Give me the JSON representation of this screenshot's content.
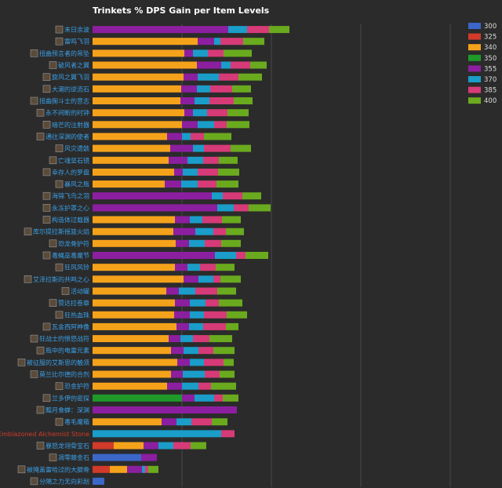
{
  "chart_data": {
    "type": "bar",
    "stacked": true,
    "orientation": "horizontal",
    "title": "Trinkets % DPS Gain per Item Levels",
    "legend_position": "right",
    "grid": true,
    "categories": [
      "末日余波",
      "雷鸣飞羽",
      "扭曲预言者的吊坠",
      "破风者之翼",
      "旋风之翼飞羽",
      "大潮的逆流石",
      "扭曲掬斗士的意志",
      "永不间断的时钟",
      "暗芒的注射器",
      "通往深渊的使者",
      "风灾遗骸",
      "亡魂坚石镜",
      "幸存人的罗盘",
      "暴风之瓶",
      "海锦飞鸟之羽",
      "永冻护罩之心",
      "构造体过载器",
      "库尔提拉斯摇篮火焰",
      "恐龙骨护符",
      "毒蝇巫毒魔节",
      "狂风风铃",
      "艾泽拉斯的共鸣之心",
      "活动罐",
      "赞达拉卷章",
      "狂热血珠",
      "瓦金西阿神像",
      "狂战士的愤怒战符",
      "瓶中的电雷元素",
      "被征服的艾斯恩的触须",
      "莫兰比尔德的合剂",
      "恐金护符",
      "兰多伊的密探",
      "黯月食蝉：深渊",
      "毒毛魔箱",
      "Emblazoned Alchemist Stone",
      "暴怒龙翎骨宝石",
      "凋零棘金石",
      "被掩盖雷哈过的大腿骨",
      "分隔之力无向彩刮"
    ],
    "label_colors": {
      "default": "#3aa0e8",
      "Emblazoned Alchemist Stone": "#d23a2a"
    },
    "series": [
      {
        "name": "300",
        "color": "#3a67c8",
        "values": [
          0,
          0,
          0,
          0,
          0,
          0,
          0,
          0,
          0,
          0,
          0,
          0,
          0,
          0,
          0,
          0,
          0,
          0,
          0,
          0,
          0,
          0,
          0,
          0,
          0,
          0,
          0,
          0,
          0,
          0,
          0,
          0,
          0,
          0,
          0,
          0,
          0.62,
          0,
          0.15
        ]
      },
      {
        "name": "325",
        "color": "#d23a2a",
        "values": [
          0,
          0,
          0,
          0,
          0,
          0,
          0,
          0,
          0,
          0,
          0,
          0,
          0,
          0,
          0,
          0,
          0,
          0,
          0,
          0,
          0,
          0,
          0,
          0,
          0,
          0,
          0,
          0,
          0,
          0,
          0,
          0,
          0,
          0,
          0,
          0.27,
          0,
          0.22,
          0
        ]
      },
      {
        "name": "340",
        "color": "#f5a21b",
        "values": [
          0,
          1.34,
          1.17,
          1.33,
          1.16,
          1.13,
          1.12,
          1.17,
          1.14,
          0.95,
          0.99,
          0.97,
          1.04,
          0.92,
          0,
          0,
          1.05,
          1.03,
          1.06,
          0,
          1.05,
          1.16,
          0.94,
          1.05,
          1.04,
          1.07,
          0.97,
          1.0,
          1.08,
          1.0,
          0.95,
          0,
          0,
          0.88,
          0,
          0.38,
          0,
          0.22,
          0
        ]
      },
      {
        "name": "350",
        "color": "#1f9a2a",
        "values": [
          0,
          0,
          0,
          0,
          0,
          0,
          0,
          0,
          0,
          0,
          0,
          0,
          0,
          0,
          0,
          0,
          0,
          0,
          0,
          0,
          0,
          0,
          0,
          0,
          0,
          0,
          0,
          0,
          0,
          0,
          0,
          1.14,
          0,
          0,
          0,
          0,
          0,
          0,
          0
        ]
      },
      {
        "name": "355",
        "color": "#8c1fa0",
        "values": [
          1.73,
          0.21,
          0.11,
          0.31,
          0.18,
          0.2,
          0.18,
          0.11,
          0.2,
          0.19,
          0.29,
          0.24,
          0.11,
          0.21,
          1.52,
          1.59,
          0.19,
          0.28,
          0.17,
          1.56,
          0.16,
          0.19,
          0.16,
          0.19,
          0.2,
          0.16,
          0.15,
          0.16,
          0.16,
          0.15,
          0.19,
          0.16,
          1.84,
          0.19,
          0,
          0.19,
          0.2,
          0.19,
          0
        ]
      },
      {
        "name": "370",
        "color": "#1a9dc8",
        "values": [
          0.24,
          0.08,
          0.19,
          0.12,
          0.27,
          0.17,
          0.19,
          0.18,
          0.21,
          0.11,
          0.14,
          0.2,
          0.19,
          0.21,
          0.14,
          0.21,
          0.16,
          0.23,
          0.2,
          0.27,
          0.16,
          0.19,
          0.21,
          0.2,
          0.18,
          0.18,
          0.16,
          0.19,
          0.18,
          0.28,
          0.21,
          0.25,
          0,
          0.19,
          1.64,
          0.19,
          0,
          0.04,
          0
        ]
      },
      {
        "name": "385",
        "color": "#d63b78",
        "values": [
          0.28,
          0.29,
          0.2,
          0.25,
          0.25,
          0.28,
          0.31,
          0.26,
          0.16,
          0.17,
          0.34,
          0.2,
          0.26,
          0.24,
          0.25,
          0.19,
          0.25,
          0.16,
          0.21,
          0.12,
          0.2,
          0.09,
          0.28,
          0.17,
          0.29,
          0.29,
          0.21,
          0.19,
          0.25,
          0.19,
          0.16,
          0.11,
          0,
          0.26,
          0.17,
          0.22,
          0,
          0.04,
          0
        ]
      },
      {
        "name": "400",
        "color": "#6aaa1e",
        "values": [
          0.26,
          0.27,
          0.36,
          0.21,
          0.3,
          0.24,
          0.24,
          0.27,
          0.29,
          0.35,
          0.26,
          0.24,
          0.27,
          0.28,
          0.24,
          0.28,
          0.24,
          0.23,
          0.25,
          0.29,
          0.24,
          0.26,
          0.24,
          0.3,
          0.26,
          0.16,
          0.29,
          0.27,
          0.13,
          0.19,
          0.32,
          0.2,
          0,
          0.2,
          0,
          0.2,
          0,
          0.13,
          0
        ]
      }
    ]
  }
}
